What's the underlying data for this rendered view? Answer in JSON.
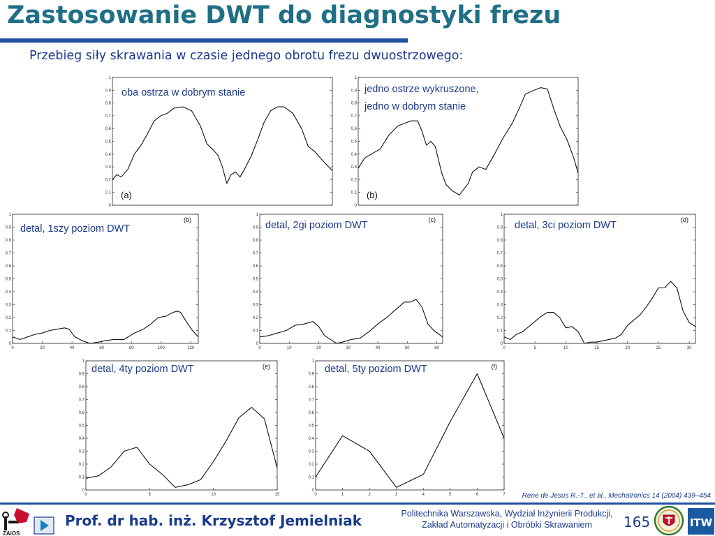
{
  "title": "Zastosowanie DWT do diagnostyki frezu",
  "subtitle": "Przebieg siły skrawania w czasie jednego obrotu frezu dwuostrzowego:",
  "plots": [
    {
      "name": "signal-a",
      "label_lines": [
        "oba ostrza w dobrym stanie"
      ],
      "tag": "(a)",
      "y_ticks": [
        "1",
        "0.9",
        "0.8",
        "0.7",
        "0.6",
        "0.5",
        "0.4",
        "0.3",
        "0.2",
        "0.1",
        "0"
      ],
      "x_ticks": [],
      "chart_data": {
        "type": "line",
        "ylim": [
          0,
          1
        ],
        "x": [
          0,
          0.02,
          0.04,
          0.07,
          0.1,
          0.13,
          0.16,
          0.19,
          0.22,
          0.25,
          0.28,
          0.32,
          0.36,
          0.4,
          0.43,
          0.46,
          0.48,
          0.5,
          0.52,
          0.54,
          0.56,
          0.58,
          0.6,
          0.63,
          0.66,
          0.69,
          0.72,
          0.75,
          0.78,
          0.82,
          0.86,
          0.89,
          0.92,
          0.95,
          1.0
        ],
        "y": [
          0.2,
          0.24,
          0.22,
          0.28,
          0.4,
          0.47,
          0.56,
          0.66,
          0.7,
          0.72,
          0.76,
          0.77,
          0.74,
          0.62,
          0.48,
          0.43,
          0.39,
          0.3,
          0.17,
          0.24,
          0.26,
          0.22,
          0.28,
          0.38,
          0.51,
          0.65,
          0.74,
          0.77,
          0.77,
          0.72,
          0.6,
          0.46,
          0.42,
          0.36,
          0.27
        ]
      }
    },
    {
      "name": "signal-b",
      "label_lines": [
        "jedno ostrze wykruszone,",
        "jedno w dobrym stanie"
      ],
      "tag": "(b)",
      "y_ticks": [
        "1",
        "0.9",
        "0.8",
        "0.7",
        "0.6",
        "0.5",
        "0.4",
        "0.3",
        "0.2",
        "0.1",
        "0"
      ],
      "x_ticks": [],
      "chart_data": {
        "type": "line",
        "ylim": [
          0,
          1
        ],
        "x": [
          0,
          0.03,
          0.06,
          0.1,
          0.14,
          0.18,
          0.21,
          0.24,
          0.27,
          0.29,
          0.31,
          0.33,
          0.35,
          0.38,
          0.4,
          0.43,
          0.46,
          0.5,
          0.52,
          0.55,
          0.58,
          0.62,
          0.66,
          0.7,
          0.73,
          0.76,
          0.8,
          0.83,
          0.86,
          0.89,
          0.92,
          0.95,
          0.98,
          1.0
        ],
        "y": [
          0.29,
          0.37,
          0.4,
          0.44,
          0.55,
          0.62,
          0.64,
          0.66,
          0.66,
          0.58,
          0.47,
          0.5,
          0.46,
          0.25,
          0.16,
          0.11,
          0.08,
          0.17,
          0.26,
          0.3,
          0.28,
          0.4,
          0.53,
          0.64,
          0.75,
          0.87,
          0.9,
          0.92,
          0.91,
          0.75,
          0.61,
          0.51,
          0.37,
          0.25
        ]
      }
    },
    {
      "name": "detail-1",
      "label_lines": [
        "detal, 1szy poziom DWT"
      ],
      "tag": "(b)",
      "y_ticks": [
        "1",
        "0.9",
        "0.8",
        "0.7",
        "0.6",
        "0.5",
        "0.4",
        "0.3",
        "0.2",
        "0.1",
        "0"
      ],
      "x_ticks": [
        "0",
        "20",
        "40",
        "60",
        "80",
        "100",
        "120"
      ],
      "chart_data": {
        "type": "line",
        "ylim": [
          0,
          1
        ],
        "xlim": [
          0,
          125
        ],
        "x": [
          0,
          5,
          10,
          15,
          20,
          25,
          30,
          35,
          38,
          42,
          47,
          52,
          58,
          62,
          68,
          75,
          82,
          88,
          93,
          98,
          103,
          108,
          111,
          113,
          118,
          121,
          125
        ],
        "y": [
          0.05,
          0.03,
          0.05,
          0.07,
          0.08,
          0.1,
          0.11,
          0.12,
          0.11,
          0.05,
          0.02,
          0.0,
          0.01,
          0.02,
          0.03,
          0.03,
          0.08,
          0.11,
          0.15,
          0.2,
          0.21,
          0.24,
          0.25,
          0.24,
          0.15,
          0.1,
          0.05
        ]
      }
    },
    {
      "name": "detail-2",
      "label_lines": [
        "detal, 2gi poziom DWT"
      ],
      "tag": "(c)",
      "y_ticks": [
        "1",
        "0.9",
        "0.8",
        "0.7",
        "0.6",
        "0.5",
        "0.4",
        "0.3",
        "0.2",
        "0.1",
        "0"
      ],
      "x_ticks": [
        "0",
        "10",
        "20",
        "30",
        "40",
        "50",
        "60"
      ],
      "chart_data": {
        "type": "line",
        "ylim": [
          0,
          1
        ],
        "xlim": [
          0,
          62
        ],
        "x": [
          0,
          3,
          6,
          9,
          12,
          15,
          18,
          20,
          22,
          24,
          26,
          28,
          31,
          34,
          37,
          40,
          43,
          46,
          49,
          51,
          53,
          55,
          57,
          59,
          62
        ],
        "y": [
          0.05,
          0.06,
          0.08,
          0.1,
          0.14,
          0.15,
          0.17,
          0.13,
          0.06,
          0.03,
          0.0,
          0.01,
          0.03,
          0.04,
          0.09,
          0.15,
          0.2,
          0.26,
          0.32,
          0.32,
          0.34,
          0.28,
          0.15,
          0.1,
          0.05
        ]
      }
    },
    {
      "name": "detail-3",
      "label_lines": [
        "detal, 3ci poziom DWT"
      ],
      "tag": "(d)",
      "y_ticks": [
        "1",
        "0.9",
        "0.8",
        "0.7",
        "0.6",
        "0.5",
        "0.4",
        "0.3",
        "0.2",
        "0.1",
        "0"
      ],
      "x_ticks": [
        "0",
        "5",
        "10",
        "15",
        "20",
        "25",
        "30"
      ],
      "chart_data": {
        "type": "line",
        "ylim": [
          0,
          1
        ],
        "xlim": [
          0,
          31
        ],
        "x": [
          0,
          1,
          2,
          3,
          4,
          5,
          6,
          7,
          8,
          9,
          10,
          11,
          12,
          13,
          14,
          15,
          16,
          17,
          18,
          19,
          20,
          21,
          22,
          23,
          24,
          25,
          26,
          27,
          28,
          29,
          30,
          31
        ],
        "y": [
          0.05,
          0.03,
          0.07,
          0.09,
          0.13,
          0.17,
          0.21,
          0.24,
          0.24,
          0.2,
          0.12,
          0.13,
          0.09,
          0.0,
          0.01,
          0.01,
          0.02,
          0.03,
          0.04,
          0.07,
          0.14,
          0.18,
          0.22,
          0.28,
          0.35,
          0.43,
          0.43,
          0.48,
          0.43,
          0.25,
          0.16,
          0.13
        ]
      }
    },
    {
      "name": "detail-4",
      "label_lines": [
        "detal, 4ty poziom DWT"
      ],
      "tag": "(e)",
      "y_ticks": [
        "1",
        "0.9",
        "0.8",
        "0.7",
        "0.6",
        "0.5",
        "0.4",
        "0.3",
        "0.2",
        "0.1",
        "0"
      ],
      "x_ticks": [
        "0",
        "5",
        "10",
        "15"
      ],
      "chart_data": {
        "type": "line",
        "ylim": [
          0,
          1
        ],
        "xlim": [
          0,
          15
        ],
        "x": [
          0,
          1,
          2,
          3,
          4,
          5,
          6,
          7,
          8,
          9,
          10,
          11,
          12,
          13,
          14,
          15
        ],
        "y": [
          0.09,
          0.11,
          0.18,
          0.3,
          0.33,
          0.2,
          0.12,
          0.02,
          0.04,
          0.08,
          0.22,
          0.38,
          0.56,
          0.64,
          0.55,
          0.17
        ]
      }
    },
    {
      "name": "detail-5",
      "label_lines": [
        "detal, 5ty poziom DWT"
      ],
      "tag": "(f)",
      "y_ticks": [
        "1",
        "0.9",
        "0.8",
        "0.7",
        "0.6",
        "0.5",
        "0.4",
        "0.3",
        "0.2",
        "0.1",
        "0"
      ],
      "x_ticks": [
        "0",
        "1",
        "2",
        "3",
        "4",
        "5",
        "6",
        "7"
      ],
      "chart_data": {
        "type": "line",
        "ylim": [
          0,
          1
        ],
        "xlim": [
          0,
          7
        ],
        "x": [
          0,
          1,
          2,
          3,
          4,
          5,
          6,
          7
        ],
        "y": [
          0.1,
          0.42,
          0.3,
          0.02,
          0.12,
          0.53,
          0.9,
          0.4
        ]
      }
    }
  ],
  "citation": "Rene de Jesus R.-T., et al.,  Mechatronics 14 (2004) 439–454",
  "footer": {
    "author": "Prof. dr hab. inż. Krzysztof Jemielniak",
    "institution_line1": "Politechnika Warszawska, Wydział Inżynierii Produkcji,",
    "institution_line2": "Zakład Automatyzacji i Obróbki Skrawaniem",
    "page_number": "165",
    "logo_zaios_text": "ZAiOS",
    "logo_itw_text": "ITW"
  },
  "colors": {
    "title": "#1f6f86",
    "rule": "#1f4f9e",
    "text": "#1a3a8a"
  }
}
